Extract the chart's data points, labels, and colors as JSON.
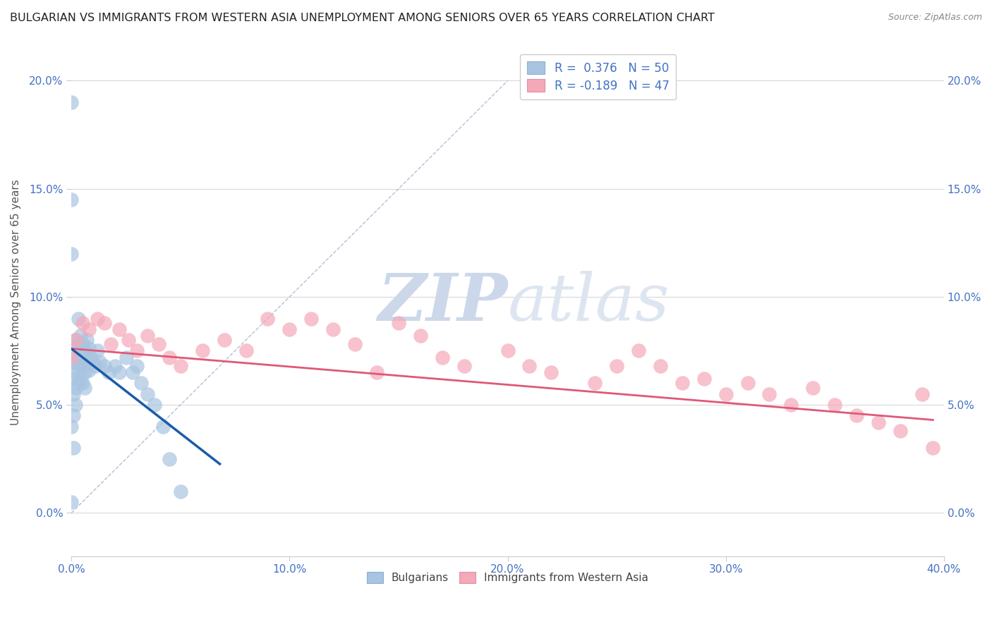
{
  "title": "BULGARIAN VS IMMIGRANTS FROM WESTERN ASIA UNEMPLOYMENT AMONG SENIORS OVER 65 YEARS CORRELATION CHART",
  "source": "Source: ZipAtlas.com",
  "ylabel": "Unemployment Among Seniors over 65 years",
  "xlim": [
    0.0,
    0.4
  ],
  "ylim": [
    -0.02,
    0.215
  ],
  "yticks": [
    0.0,
    0.05,
    0.1,
    0.15,
    0.2
  ],
  "xticks": [
    0.0,
    0.1,
    0.2,
    0.3,
    0.4
  ],
  "r_bulgarian": 0.376,
  "n_bulgarian": 50,
  "r_western_asia": -0.189,
  "n_western_asia": 47,
  "bulgarian_color": "#a8c4e0",
  "western_asia_color": "#f4a8b8",
  "trend_bulgarian_color": "#1a5ca8",
  "trend_western_asia_color": "#e05878",
  "diagonal_color": "#9eb0d0",
  "watermark_zip": "ZIP",
  "watermark_atlas": "atlas",
  "bulgarian_x": [
    0.0,
    0.0,
    0.0,
    0.0,
    0.0,
    0.001,
    0.001,
    0.001,
    0.001,
    0.001,
    0.002,
    0.002,
    0.002,
    0.002,
    0.002,
    0.003,
    0.003,
    0.003,
    0.003,
    0.004,
    0.004,
    0.004,
    0.005,
    0.005,
    0.005,
    0.006,
    0.006,
    0.006,
    0.007,
    0.007,
    0.008,
    0.008,
    0.009,
    0.01,
    0.011,
    0.012,
    0.013,
    0.015,
    0.017,
    0.02,
    0.022,
    0.025,
    0.028,
    0.03,
    0.032,
    0.035,
    0.038,
    0.042,
    0.045,
    0.05
  ],
  "bulgarian_y": [
    0.19,
    0.145,
    0.12,
    0.04,
    0.005,
    0.07,
    0.062,
    0.055,
    0.045,
    0.03,
    0.08,
    0.072,
    0.065,
    0.058,
    0.05,
    0.09,
    0.078,
    0.068,
    0.06,
    0.082,
    0.072,
    0.062,
    0.078,
    0.068,
    0.06,
    0.075,
    0.065,
    0.058,
    0.08,
    0.07,
    0.076,
    0.066,
    0.072,
    0.07,
    0.068,
    0.075,
    0.07,
    0.068,
    0.065,
    0.068,
    0.065,
    0.072,
    0.065,
    0.068,
    0.06,
    0.055,
    0.05,
    0.04,
    0.025,
    0.01
  ],
  "western_asia_x": [
    0.0,
    0.002,
    0.005,
    0.008,
    0.012,
    0.015,
    0.018,
    0.022,
    0.026,
    0.03,
    0.035,
    0.04,
    0.045,
    0.05,
    0.06,
    0.07,
    0.08,
    0.09,
    0.1,
    0.11,
    0.12,
    0.13,
    0.14,
    0.15,
    0.16,
    0.17,
    0.18,
    0.2,
    0.21,
    0.22,
    0.24,
    0.25,
    0.26,
    0.27,
    0.28,
    0.29,
    0.3,
    0.31,
    0.32,
    0.33,
    0.34,
    0.35,
    0.36,
    0.37,
    0.38,
    0.39,
    0.395
  ],
  "western_asia_y": [
    0.072,
    0.08,
    0.088,
    0.085,
    0.09,
    0.088,
    0.078,
    0.085,
    0.08,
    0.075,
    0.082,
    0.078,
    0.072,
    0.068,
    0.075,
    0.08,
    0.075,
    0.09,
    0.085,
    0.09,
    0.085,
    0.078,
    0.065,
    0.088,
    0.082,
    0.072,
    0.068,
    0.075,
    0.068,
    0.065,
    0.06,
    0.068,
    0.075,
    0.068,
    0.06,
    0.062,
    0.055,
    0.06,
    0.055,
    0.05,
    0.058,
    0.05,
    0.045,
    0.042,
    0.038,
    0.055,
    0.03
  ],
  "trend_bulgarian_x0": 0.0,
  "trend_bulgarian_x1": 0.068,
  "trend_western_asia_x0": 0.0,
  "trend_western_asia_x1": 0.395,
  "trend_western_asia_y0": 0.076,
  "trend_western_asia_y1": 0.043,
  "tick_color": "#4472c4",
  "label_color": "#555555"
}
